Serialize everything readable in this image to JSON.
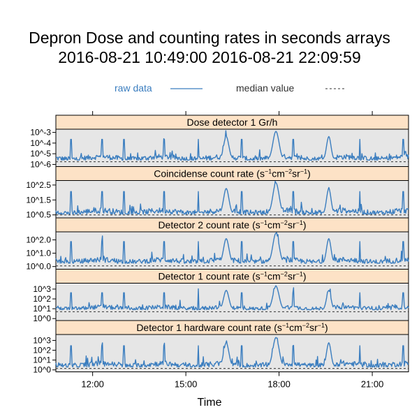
{
  "title_line1": "Depron Dose and counting rates in seconds arrays",
  "title_line2": "2016-08-21 10:49:00 2016-08-21 22:09:59",
  "legend": {
    "raw_label": "raw data",
    "median_label": "median value"
  },
  "colors": {
    "raw": "#3a7dbf",
    "median": "#333333",
    "strip": "#fde2c6",
    "panel_bg": "#e6e6e6"
  },
  "chart_data": {
    "type": "line",
    "xlabel": "Time",
    "x_range": [
      "10:49",
      "22:10"
    ],
    "x_ticks": [
      "12:00",
      "15:00",
      "18:00",
      "21:00"
    ],
    "panels": [
      {
        "name": "Dose detector 1 Gr/h",
        "strip": {
          "main": "Dose detector 1 Gr/h"
        },
        "y_log_range": [
          -6.2,
          -2.7
        ],
        "y_ticks": [
          {
            "v": -3,
            "label": "10^-3"
          },
          {
            "v": -4,
            "label": "10^-4"
          },
          {
            "v": -5,
            "label": "10^-5"
          },
          {
            "v": -6,
            "label": "10^-6"
          }
        ],
        "baseline": -5.6,
        "peak": -2.9,
        "median": -5.75
      },
      {
        "name": "Coincidense count rate (s-1cm-2sr-1)",
        "strip": {
          "main": "Coincidense count rate (s",
          "s1": "−1",
          "m": "cm",
          "s2": "−2",
          "r": "sr",
          "s3": "−1",
          "end": ")"
        },
        "y_log_range": [
          0.3,
          2.8
        ],
        "y_ticks": [
          {
            "v": 2.5,
            "label": "10^2.5"
          },
          {
            "v": 1.5,
            "label": "10^1.5"
          },
          {
            "v": 0.5,
            "label": "10^0.5"
          }
        ],
        "baseline": 0.55,
        "peak": 2.65,
        "median": 0.5
      },
      {
        "name": "Detector 2 count rate (s-1cm-2sr-1)",
        "strip": {
          "main": "Detector 2 count rate (s",
          "s1": "−1",
          "m": "cm",
          "s2": "−2",
          "r": "sr",
          "s3": "−1",
          "end": ")"
        },
        "y_log_range": [
          -0.2,
          2.6
        ],
        "y_ticks": [
          {
            "v": 2,
            "label": "10^2.0"
          },
          {
            "v": 1,
            "label": "10^1.0"
          },
          {
            "v": 0,
            "label": "10^0.0"
          }
        ],
        "baseline": 0.25,
        "peak": 2.5,
        "median": 0.05
      },
      {
        "name": "Detector 1 count rate (s-1cm-2sr-1)",
        "strip": {
          "main": "Detector 1 count rate (s",
          "s1": "−1",
          "m": "cm",
          "s2": "−2",
          "r": "sr",
          "s3": "−1",
          "end": ")"
        },
        "y_log_range": [
          -0.2,
          3.6
        ],
        "y_ticks": [
          {
            "v": 3,
            "label": "10^3"
          },
          {
            "v": 2,
            "label": "10^2"
          },
          {
            "v": 1,
            "label": "10^1"
          },
          {
            "v": 0,
            "label": "10^0"
          }
        ],
        "baseline": 0.9,
        "peak": 3.3,
        "median": 0.7
      },
      {
        "name": "Detector 1 hardware count rate (s-1cm-2sr-1)",
        "strip": {
          "main": "Detector 1 hardware count rate (s",
          "s1": "−1",
          "m": "cm",
          "s2": "−2",
          "r": "sr",
          "s3": "−1",
          "end": ")"
        },
        "y_log_range": [
          -0.2,
          3.6
        ],
        "y_ticks": [
          {
            "v": 3,
            "label": "10^3"
          },
          {
            "v": 2,
            "label": "10^2"
          },
          {
            "v": 1,
            "label": "10^1"
          },
          {
            "v": 0,
            "label": "10^0"
          }
        ],
        "baseline": 0.3,
        "peak": 3.3,
        "median": 0.15
      }
    ],
    "features": {
      "spikes_hours": [
        11.3,
        12.3,
        13.0,
        14.3,
        15.4,
        16.8,
        18.45,
        19.6,
        20.6,
        22.0
      ],
      "humps": [
        {
          "center": 16.3,
          "width": 0.12
        },
        {
          "center": 17.9,
          "width": 0.14
        },
        {
          "center": 19.6,
          "width": 0.1
        }
      ]
    }
  }
}
